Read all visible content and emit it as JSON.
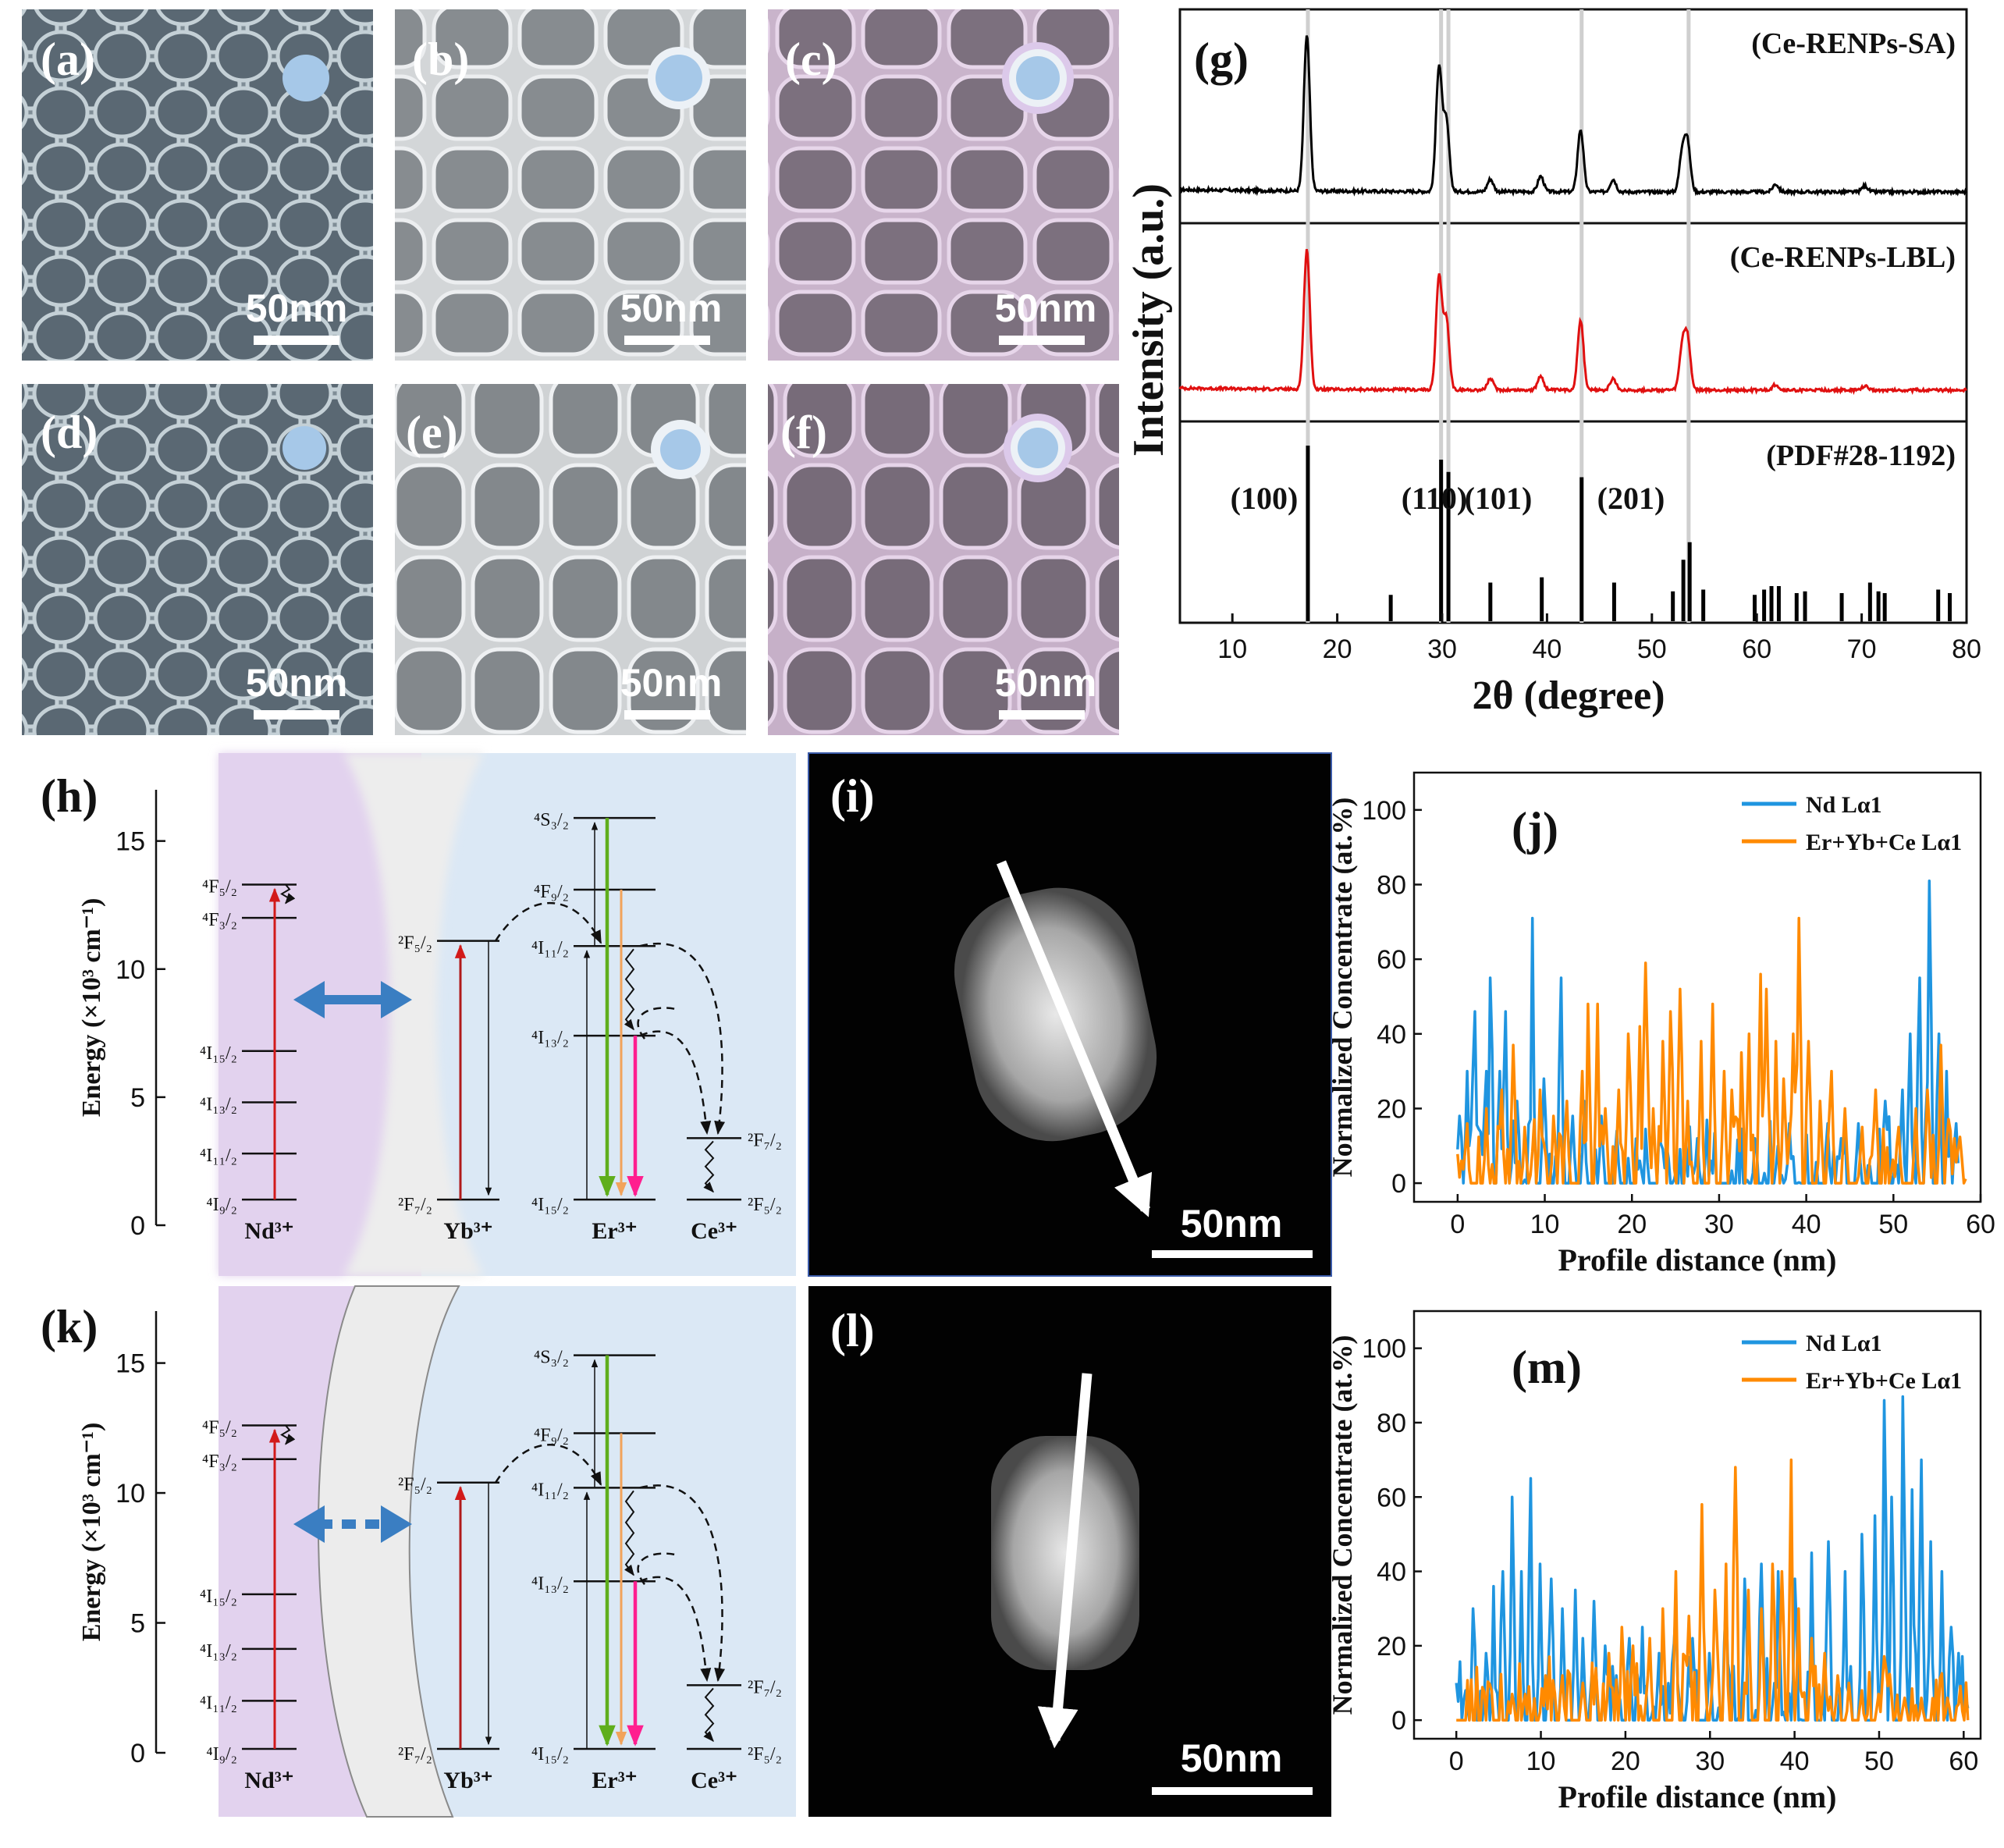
{
  "tem_panels": [
    {
      "label": "(a)",
      "scale_bar": "50nm",
      "icon_color": "#a6c8e8",
      "icon_ring": ""
    },
    {
      "label": "(b)",
      "scale_bar": "50nm",
      "icon_color": "#a6c8e8",
      "icon_ring": "#ecf1f6"
    },
    {
      "label": "(c)",
      "scale_bar": "50nm",
      "icon_color": "#a6c8e8",
      "icon_ring": "#dcc9ea"
    },
    {
      "label": "(d)",
      "scale_bar": "50nm",
      "icon_color": "#a6c8e8",
      "icon_ring": ""
    },
    {
      "label": "(e)",
      "scale_bar": "50nm",
      "icon_color": "#a6c8e8",
      "icon_ring": "#ecf1f6"
    },
    {
      "label": "(f)",
      "scale_bar": "50nm",
      "icon_color": "#a6c8e8",
      "icon_ring": "#dcc9ea"
    }
  ],
  "stem_panels": [
    {
      "label": "(i)",
      "scale_bar": "50nm"
    },
    {
      "label": "(l)",
      "scale_bar": "50nm"
    }
  ],
  "colors": {
    "ca_line": "#000000",
    "lbl_line": "#e01010",
    "pdf_line": "#000000",
    "nd_line": "#1f95e0",
    "er_line": "#ff8a00",
    "nd_shell": "#e2d2ee",
    "core": "#dbe8f5",
    "inert": "#ececec"
  },
  "chart_data": [
    {
      "type": "line",
      "panel_label": "(g)",
      "xlabel": "2θ (degree)",
      "ylabel": "Intensity (a.u.)",
      "xlim": [
        5,
        80
      ],
      "x_ticks": [
        10,
        20,
        30,
        40,
        50,
        60,
        70,
        80
      ],
      "series": [
        {
          "name": "(Ce-RENPs-SA)",
          "peaks": [
            [
              17.1,
              1.0
            ],
            [
              29.7,
              0.8
            ],
            [
              30.4,
              0.45
            ],
            [
              34.6,
              0.08
            ],
            [
              39.4,
              0.1
            ],
            [
              43.2,
              0.4
            ],
            [
              46.3,
              0.08
            ],
            [
              52.9,
              0.25
            ],
            [
              53.4,
              0.3
            ],
            [
              61.8,
              0.05
            ],
            [
              70.3,
              0.04
            ]
          ]
        },
        {
          "name": "(Ce-RENPs-LBL)",
          "peaks": [
            [
              17.1,
              1.0
            ],
            [
              29.7,
              0.8
            ],
            [
              30.4,
              0.5
            ],
            [
              34.6,
              0.08
            ],
            [
              39.4,
              0.1
            ],
            [
              43.2,
              0.5
            ],
            [
              46.3,
              0.08
            ],
            [
              52.9,
              0.3
            ],
            [
              53.4,
              0.35
            ],
            [
              61.8,
              0.04
            ],
            [
              70.3,
              0.03
            ]
          ]
        },
        {
          "name": "(PDF#28-1192)",
          "sticks": [
            [
              17.2,
              1.0
            ],
            [
              25.1,
              0.15
            ],
            [
              29.9,
              0.92
            ],
            [
              30.6,
              0.85
            ],
            [
              34.6,
              0.22
            ],
            [
              39.5,
              0.25
            ],
            [
              43.3,
              0.82
            ],
            [
              46.4,
              0.22
            ],
            [
              52.0,
              0.17
            ],
            [
              53.0,
              0.35
            ],
            [
              53.6,
              0.45
            ],
            [
              54.9,
              0.18
            ],
            [
              59.8,
              0.15
            ],
            [
              60.7,
              0.18
            ],
            [
              61.4,
              0.2
            ],
            [
              62.1,
              0.2
            ],
            [
              63.8,
              0.16
            ],
            [
              64.6,
              0.17
            ],
            [
              68.1,
              0.16
            ],
            [
              70.8,
              0.22
            ],
            [
              71.6,
              0.17
            ],
            [
              72.2,
              0.16
            ],
            [
              77.3,
              0.18
            ],
            [
              78.4,
              0.16
            ]
          ]
        }
      ],
      "peak_labels": [
        {
          "text": "(100)",
          "x": 17.2
        },
        {
          "text": "(110)",
          "x": 29.9
        },
        {
          "text": "(101)",
          "x": 30.6
        },
        {
          "text": "(201)",
          "x": 43.3
        }
      ]
    },
    {
      "type": "line",
      "panel_label": "(j)",
      "xlabel": "Profile distance (nm)",
      "ylabel": "Normalized Concentrate (at.%)",
      "xlim": [
        -5,
        60
      ],
      "ylim": [
        -5,
        110
      ],
      "x_ticks": [
        0,
        10,
        20,
        30,
        40,
        50,
        60
      ],
      "y_ticks": [
        0,
        20,
        40,
        60,
        80,
        100
      ],
      "series": [
        {
          "name": "Nd Lα1",
          "x_end": 57.5,
          "peaks": [
            [
              0.3,
              18
            ],
            [
              1.0,
              30
            ],
            [
              2.0,
              46
            ],
            [
              3.2,
              30
            ],
            [
              3.8,
              55
            ],
            [
              4.8,
              30
            ],
            [
              5.6,
              46
            ],
            [
              6.8,
              22
            ],
            [
              8.5,
              71
            ],
            [
              10.0,
              28
            ],
            [
              11.8,
              55
            ],
            [
              13.2,
              18
            ],
            [
              14.6,
              22
            ],
            [
              16.4,
              18
            ],
            [
              18.2,
              14
            ],
            [
              21.0,
              6
            ],
            [
              24.0,
              10
            ],
            [
              27.5,
              12
            ],
            [
              29.0,
              6
            ],
            [
              34.0,
              12
            ],
            [
              38.0,
              16
            ],
            [
              42.5,
              16
            ],
            [
              44.0,
              12
            ],
            [
              46.0,
              16
            ],
            [
              49.0,
              22
            ],
            [
              51.0,
              25
            ],
            [
              52.0,
              40
            ],
            [
              53.0,
              55
            ],
            [
              54.2,
              81
            ],
            [
              55.3,
              40
            ],
            [
              56.2,
              30
            ],
            [
              57.2,
              16
            ]
          ]
        },
        {
          "name": "Er+Yb+Ce Lα1",
          "x_end": 58.5,
          "peaks": [
            [
              0.5,
              6
            ],
            [
              1.2,
              16
            ],
            [
              3.3,
              20
            ],
            [
              5.0,
              25
            ],
            [
              6.3,
              37
            ],
            [
              7.8,
              15
            ],
            [
              9.5,
              25
            ],
            [
              11.0,
              18
            ],
            [
              12.5,
              22
            ],
            [
              14.2,
              30
            ],
            [
              15.0,
              48
            ],
            [
              16.0,
              48
            ],
            [
              17.0,
              20
            ],
            [
              18.5,
              25
            ],
            [
              19.5,
              40
            ],
            [
              21.0,
              42
            ],
            [
              21.5,
              59
            ],
            [
              22.5,
              20
            ],
            [
              23.5,
              38
            ],
            [
              24.5,
              46
            ],
            [
              25.5,
              52
            ],
            [
              26.5,
              22
            ],
            [
              28.0,
              38
            ],
            [
              29.2,
              48
            ],
            [
              30.5,
              30
            ],
            [
              31.5,
              25
            ],
            [
              32.5,
              35
            ],
            [
              33.5,
              40
            ],
            [
              34.8,
              56
            ],
            [
              35.5,
              52
            ],
            [
              36.5,
              38
            ],
            [
              37.5,
              28
            ],
            [
              38.5,
              40
            ],
            [
              39.2,
              71
            ],
            [
              40.2,
              38
            ],
            [
              41.5,
              22
            ],
            [
              42.8,
              30
            ],
            [
              44.5,
              20
            ],
            [
              46.5,
              15
            ],
            [
              48.0,
              25
            ],
            [
              50.5,
              15
            ],
            [
              52.5,
              20
            ],
            [
              54.0,
              25
            ],
            [
              55.5,
              37
            ],
            [
              57.0,
              12
            ]
          ]
        }
      ]
    },
    {
      "type": "line",
      "panel_label": "(m)",
      "xlabel": "Profile distance (nm)",
      "ylabel": "Normalized Concentrate (at.%)",
      "xlim": [
        -5,
        62
      ],
      "ylim": [
        -5,
        110
      ],
      "x_ticks": [
        0,
        10,
        20,
        30,
        40,
        50,
        60
      ],
      "y_ticks": [
        0,
        20,
        40,
        60,
        80,
        100
      ],
      "series": [
        {
          "name": "Nd Lα1",
          "x_end": 60.5,
          "peaks": [
            [
              0.0,
              10
            ],
            [
              1.2,
              8
            ],
            [
              2.0,
              30
            ],
            [
              3.5,
              18
            ],
            [
              4.5,
              36
            ],
            [
              5.5,
              40
            ],
            [
              6.5,
              60
            ],
            [
              7.8,
              40
            ],
            [
              8.8,
              65
            ],
            [
              10.0,
              42
            ],
            [
              11.2,
              38
            ],
            [
              12.5,
              30
            ],
            [
              14.0,
              35
            ],
            [
              15.0,
              22
            ],
            [
              16.2,
              32
            ],
            [
              17.5,
              20
            ],
            [
              19.0,
              12
            ],
            [
              20.5,
              22
            ],
            [
              22.0,
              25
            ],
            [
              24.0,
              18
            ],
            [
              26.0,
              30
            ],
            [
              28.0,
              22
            ],
            [
              30.0,
              18
            ],
            [
              32.0,
              32
            ],
            [
              34.0,
              38
            ],
            [
              36.0,
              42
            ],
            [
              38.0,
              40
            ],
            [
              40.0,
              38
            ],
            [
              42.0,
              45
            ],
            [
              44.0,
              48
            ],
            [
              46.0,
              40
            ],
            [
              48.0,
              50
            ],
            [
              49.5,
              55
            ],
            [
              50.5,
              86
            ],
            [
              51.5,
              60
            ],
            [
              52.8,
              87
            ],
            [
              54.0,
              62
            ],
            [
              55.0,
              70
            ],
            [
              56.0,
              48
            ],
            [
              57.5,
              40
            ],
            [
              58.5,
              25
            ],
            [
              59.5,
              18
            ],
            [
              60.2,
              6
            ]
          ]
        },
        {
          "name": "Er+Yb+Ce Lα1",
          "x_end": 60.5,
          "peaks": [
            [
              6.5,
              7
            ],
            [
              8.2,
              7
            ],
            [
              10.5,
              12
            ],
            [
              12.5,
              12
            ],
            [
              15.0,
              10
            ],
            [
              16.5,
              14
            ],
            [
              18.0,
              18
            ],
            [
              19.5,
              25
            ],
            [
              21.0,
              20
            ],
            [
              22.8,
              22
            ],
            [
              24.5,
              30
            ],
            [
              26.0,
              40
            ],
            [
              27.5,
              28
            ],
            [
              29.0,
              58
            ],
            [
              30.5,
              35
            ],
            [
              31.8,
              42
            ],
            [
              33.0,
              68
            ],
            [
              34.5,
              35
            ],
            [
              36.0,
              30
            ],
            [
              37.5,
              42
            ],
            [
              38.5,
              40
            ],
            [
              39.5,
              70
            ],
            [
              40.5,
              30
            ],
            [
              42.0,
              22
            ],
            [
              43.5,
              18
            ],
            [
              45.0,
              12
            ],
            [
              46.5,
              10
            ],
            [
              48.0,
              8
            ],
            [
              50.0,
              7
            ],
            [
              53.0,
              6
            ],
            [
              55.0,
              6
            ],
            [
              58.0,
              6
            ]
          ]
        }
      ]
    },
    {
      "type": "diagram",
      "panel_label": "(h)",
      "ylabel": "Energy (×10³ cm⁻¹)",
      "y_ticks": [
        0,
        5,
        10,
        15
      ],
      "ylim": [
        0,
        17
      ],
      "ions": [
        {
          "name": "Nd³⁺",
          "levels": [
            [
              "⁴I₉/₂",
              1.0
            ],
            [
              "⁴I₁₁/₂",
              2.8
            ],
            [
              "⁴I₁₃/₂",
              4.8
            ],
            [
              "⁴I₁₅/₂",
              6.8
            ],
            [
              "⁴F₃/₂",
              12.0
            ],
            [
              "⁴F₅/₂",
              13.3
            ]
          ]
        },
        {
          "name": "Yb³⁺",
          "levels": [
            [
              "²F₇/₂",
              1.0
            ],
            [
              "²F₅/₂",
              11.1
            ]
          ]
        },
        {
          "name": "Er³⁺",
          "levels": [
            [
              "⁴I₁₅/₂",
              1.0
            ],
            [
              "⁴I₁₃/₂",
              7.4
            ],
            [
              "⁴I₁₁/₂",
              10.9
            ],
            [
              "⁴F₉/₂",
              13.1
            ],
            [
              "⁴S₃/₂",
              15.9
            ]
          ]
        },
        {
          "name": "Ce³⁺",
          "levels": [
            [
              "²F₅/₂",
              1.0
            ],
            [
              "²F₇/₂",
              3.4
            ]
          ]
        }
      ]
    },
    {
      "type": "diagram",
      "panel_label": "(k)",
      "ylabel": "Energy (×10³ cm⁻¹)",
      "y_ticks": [
        0,
        5,
        10,
        15
      ],
      "ylim": [
        0,
        17
      ],
      "ions": [
        {
          "name": "Nd³⁺",
          "levels": [
            [
              "⁴I₉/₂",
              0.15
            ],
            [
              "⁴I₁₁/₂",
              2.0
            ],
            [
              "⁴I₁₃/₂",
              4.0
            ],
            [
              "⁴I₁₅/₂",
              6.1
            ],
            [
              "⁴F₃/₂",
              11.3
            ],
            [
              "⁴F₅/₂",
              12.6
            ]
          ]
        },
        {
          "name": "Yb³⁺",
          "levels": [
            [
              "²F₇/₂",
              0.15
            ],
            [
              "²F₅/₂",
              10.4
            ]
          ]
        },
        {
          "name": "Er³⁺",
          "levels": [
            [
              "⁴I₁₅/₂",
              0.15
            ],
            [
              "⁴I₁₃/₂",
              6.6
            ],
            [
              "⁴I₁₁/₂",
              10.2
            ],
            [
              "⁴F₉/₂",
              12.3
            ],
            [
              "⁴S₃/₂",
              15.3
            ]
          ]
        },
        {
          "name": "Ce³⁺",
          "levels": [
            [
              "²F₅/₂",
              0.15
            ],
            [
              "²F₇/₂",
              2.6
            ]
          ]
        }
      ]
    }
  ]
}
